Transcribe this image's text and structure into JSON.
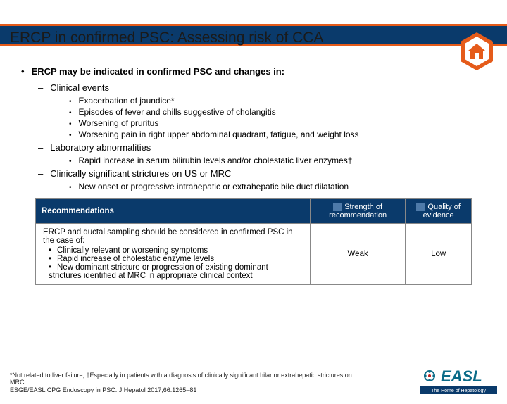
{
  "title": "ERCP in confirmed PSC: Assessing risk of CCA",
  "intro": "ERCP may be indicated in confirmed PSC and changes in:",
  "sections": [
    {
      "heading": "Clinical events",
      "items": [
        "Exacerbation of jaundice*",
        "Episodes of fever and chills suggestive of cholangitis",
        "Worsening of pruritus",
        "Worsening pain in right upper abdominal quadrant, fatigue, and weight loss"
      ]
    },
    {
      "heading": "Laboratory abnormalities",
      "items": [
        "Rapid increase in serum bilirubin levels and/or cholestatic liver enzymes†"
      ]
    },
    {
      "heading": "Clinically significant strictures on US or MRC",
      "items": [
        "New onset or progressive intrahepatic or extrahepatic bile duct dilatation"
      ]
    }
  ],
  "table": {
    "headers": {
      "h1": "Recommendations",
      "h2": "Strength of recommendation",
      "h3": "Quality of evidence"
    },
    "rec_intro": "ERCP and ductal sampling should be considered in confirmed PSC in the case of:",
    "rec_bullets": [
      "Clinically relevant or worsening symptoms",
      "Rapid increase of cholestatic enzyme levels",
      "New dominant stricture or progression of existing dominant strictures identified at MRC in appropriate clinical context"
    ],
    "strength": "Weak",
    "quality": "Low"
  },
  "footnote_line1": "*Not related to liver failure; †Especially in patients with a diagnosis of clinically significant hilar or extrahepatic strictures on MRC",
  "footnote_line2": "ESGE/EASL CPG Endoscopy in PSC. J Hepatol 2017;66:1265–81",
  "logo_text": "EASL",
  "logo_tagline": "The Home of Hepatology",
  "colors": {
    "bar_blue": "#0a3a6b",
    "accent_orange": "#e55b1a",
    "swatch": "#4e7aa9"
  }
}
